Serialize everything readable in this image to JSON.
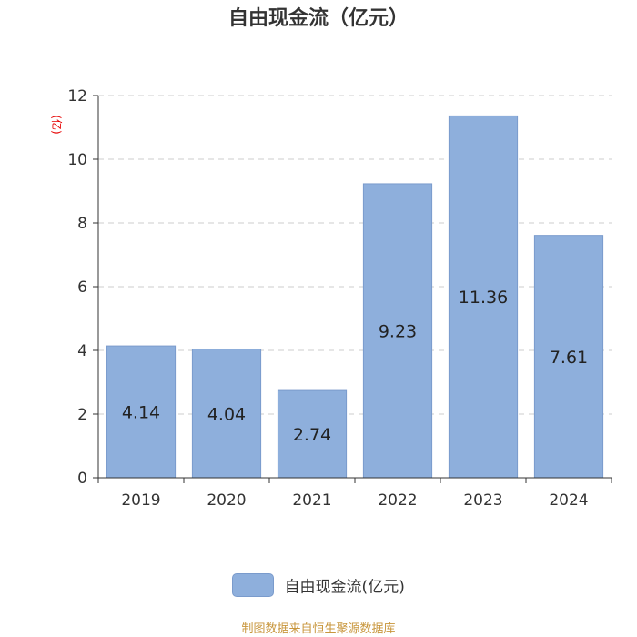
{
  "chart_data": {
    "type": "bar",
    "title": "自由现金流（亿元）",
    "ylabel": "(亿)",
    "categories": [
      "2019",
      "2020",
      "2021",
      "2022",
      "2023",
      "2024"
    ],
    "series": [
      {
        "name": "自由现金流(亿元)",
        "values": [
          4.14,
          4.04,
          2.74,
          9.23,
          11.36,
          7.61
        ]
      }
    ],
    "data_labels": [
      "4.14",
      "4.04",
      "2.74",
      "9.23",
      "11.36",
      "7.61"
    ],
    "yticks": [
      "0",
      "2",
      "4",
      "6",
      "8",
      "10",
      "12"
    ],
    "ylim": [
      0,
      12
    ],
    "grid": true,
    "legend_position": "bottom",
    "colors": {
      "bar": "#8eafdc",
      "bar_stroke": "#7a9bcc",
      "grid": "#cccccc",
      "axis": "#333333",
      "ylabel": "#e60000",
      "footer": "#c8963c"
    }
  },
  "footer_text": "制图数据来自恒生聚源数据库"
}
